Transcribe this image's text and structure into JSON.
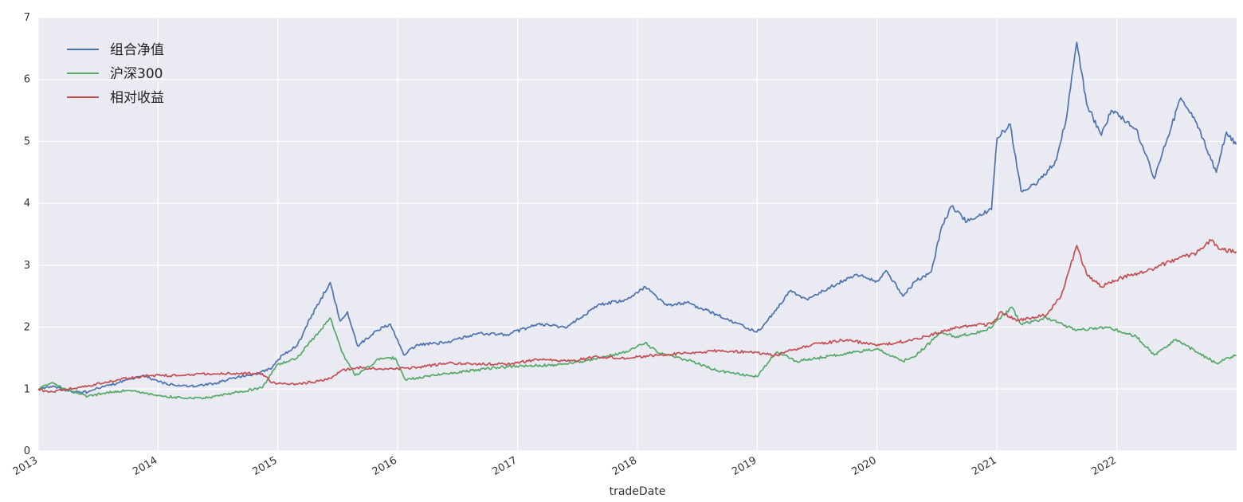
{
  "chart_data": {
    "type": "line",
    "xlabel": "tradeDate",
    "ylabel": "",
    "xlim": [
      "2013-01-01",
      "2023-01-01"
    ],
    "ylim": [
      0,
      7
    ],
    "yticks": [
      0,
      1,
      2,
      3,
      4,
      5,
      6,
      7
    ],
    "xticks": [
      "2013",
      "2014",
      "2015",
      "2016",
      "2017",
      "2018",
      "2019",
      "2020",
      "2021",
      "2022"
    ],
    "grid": true,
    "legend_position": "top-left",
    "series": [
      {
        "name": "组合净值",
        "color": "#4c72b0",
        "points": [
          [
            "2013-01-01",
            1.0
          ],
          [
            "2013-02-15",
            1.05
          ],
          [
            "2013-04-01",
            0.97
          ],
          [
            "2013-06-01",
            0.95
          ],
          [
            "2013-07-01",
            1.02
          ],
          [
            "2013-09-01",
            1.1
          ],
          [
            "2013-11-15",
            1.22
          ],
          [
            "2014-01-01",
            1.12
          ],
          [
            "2014-03-01",
            1.05
          ],
          [
            "2014-05-01",
            1.05
          ],
          [
            "2014-07-01",
            1.1
          ],
          [
            "2014-09-01",
            1.2
          ],
          [
            "2014-11-01",
            1.25
          ],
          [
            "2014-12-15",
            1.35
          ],
          [
            "2015-01-15",
            1.55
          ],
          [
            "2015-03-01",
            1.7
          ],
          [
            "2015-04-15",
            2.2
          ],
          [
            "2015-06-10",
            2.72
          ],
          [
            "2015-07-10",
            2.1
          ],
          [
            "2015-08-01",
            2.25
          ],
          [
            "2015-09-01",
            1.7
          ],
          [
            "2015-11-01",
            1.95
          ],
          [
            "2015-12-10",
            2.05
          ],
          [
            "2016-01-20",
            1.55
          ],
          [
            "2016-03-01",
            1.72
          ],
          [
            "2016-06-01",
            1.75
          ],
          [
            "2016-09-01",
            1.9
          ],
          [
            "2016-12-01",
            1.88
          ],
          [
            "2017-03-01",
            2.05
          ],
          [
            "2017-06-01",
            2.0
          ],
          [
            "2017-09-01",
            2.35
          ],
          [
            "2017-12-01",
            2.45
          ],
          [
            "2018-01-25",
            2.65
          ],
          [
            "2018-04-01",
            2.35
          ],
          [
            "2018-06-01",
            2.4
          ],
          [
            "2018-09-01",
            2.2
          ],
          [
            "2018-12-31",
            1.92
          ],
          [
            "2019-02-01",
            2.1
          ],
          [
            "2019-04-10",
            2.58
          ],
          [
            "2019-06-01",
            2.45
          ],
          [
            "2019-09-01",
            2.7
          ],
          [
            "2019-11-01",
            2.85
          ],
          [
            "2019-12-31",
            2.75
          ],
          [
            "2020-02-01",
            2.9
          ],
          [
            "2020-03-20",
            2.5
          ],
          [
            "2020-05-01",
            2.75
          ],
          [
            "2020-06-15",
            2.9
          ],
          [
            "2020-07-15",
            3.6
          ],
          [
            "2020-08-15",
            3.95
          ],
          [
            "2020-10-01",
            3.7
          ],
          [
            "2020-12-15",
            3.9
          ],
          [
            "2021-01-01",
            5.05
          ],
          [
            "2021-02-10",
            5.28
          ],
          [
            "2021-03-15",
            4.2
          ],
          [
            "2021-05-01",
            4.3
          ],
          [
            "2021-07-01",
            4.7
          ],
          [
            "2021-08-01",
            5.4
          ],
          [
            "2021-09-01",
            6.6
          ],
          [
            "2021-10-01",
            5.6
          ],
          [
            "2021-11-15",
            5.1
          ],
          [
            "2021-12-15",
            5.5
          ],
          [
            "2022-03-01",
            5.2
          ],
          [
            "2022-04-25",
            4.4
          ],
          [
            "2022-06-01",
            5.0
          ],
          [
            "2022-07-15",
            5.7
          ],
          [
            "2022-09-01",
            5.3
          ],
          [
            "2022-10-31",
            4.5
          ],
          [
            "2022-12-01",
            5.15
          ],
          [
            "2022-12-31",
            4.95
          ]
        ]
      },
      {
        "name": "沪深300",
        "color": "#55a868",
        "points": [
          [
            "2013-01-01",
            1.0
          ],
          [
            "2013-02-10",
            1.1
          ],
          [
            "2013-04-01",
            0.98
          ],
          [
            "2013-06-01",
            0.88
          ],
          [
            "2013-08-01",
            0.95
          ],
          [
            "2013-10-01",
            0.98
          ],
          [
            "2014-01-01",
            0.9
          ],
          [
            "2014-03-20",
            0.85
          ],
          [
            "2014-06-01",
            0.86
          ],
          [
            "2014-09-01",
            0.95
          ],
          [
            "2014-11-15",
            1.02
          ],
          [
            "2014-12-31",
            1.4
          ],
          [
            "2015-03-01",
            1.5
          ],
          [
            "2015-06-10",
            2.15
          ],
          [
            "2015-07-15",
            1.6
          ],
          [
            "2015-08-25",
            1.22
          ],
          [
            "2015-11-10",
            1.5
          ],
          [
            "2015-12-25",
            1.5
          ],
          [
            "2016-01-25",
            1.15
          ],
          [
            "2016-06-01",
            1.25
          ],
          [
            "2016-11-01",
            1.35
          ],
          [
            "2017-03-01",
            1.38
          ],
          [
            "2017-06-01",
            1.4
          ],
          [
            "2017-09-01",
            1.5
          ],
          [
            "2017-12-01",
            1.6
          ],
          [
            "2018-01-25",
            1.75
          ],
          [
            "2018-03-01",
            1.6
          ],
          [
            "2018-06-15",
            1.45
          ],
          [
            "2018-09-01",
            1.3
          ],
          [
            "2018-12-31",
            1.2
          ],
          [
            "2019-03-01",
            1.6
          ],
          [
            "2019-05-01",
            1.45
          ],
          [
            "2019-09-01",
            1.55
          ],
          [
            "2019-12-31",
            1.65
          ],
          [
            "2020-03-20",
            1.45
          ],
          [
            "2020-05-01",
            1.55
          ],
          [
            "2020-07-10",
            1.9
          ],
          [
            "2020-09-01",
            1.85
          ],
          [
            "2020-12-01",
            1.95
          ],
          [
            "2021-02-15",
            2.32
          ],
          [
            "2021-03-15",
            2.05
          ],
          [
            "2021-06-01",
            2.15
          ],
          [
            "2021-09-01",
            1.95
          ],
          [
            "2021-12-01",
            2.0
          ],
          [
            "2022-03-01",
            1.85
          ],
          [
            "2022-04-25",
            1.55
          ],
          [
            "2022-07-01",
            1.8
          ],
          [
            "2022-09-01",
            1.6
          ],
          [
            "2022-10-31",
            1.42
          ],
          [
            "2022-12-31",
            1.55
          ]
        ]
      },
      {
        "name": "相对收益",
        "color": "#c44e52",
        "points": [
          [
            "2013-01-01",
            1.0
          ],
          [
            "2013-02-01",
            0.95
          ],
          [
            "2013-04-01",
            1.0
          ],
          [
            "2013-06-01",
            1.05
          ],
          [
            "2013-09-01",
            1.15
          ],
          [
            "2013-12-01",
            1.22
          ],
          [
            "2014-03-01",
            1.22
          ],
          [
            "2014-06-01",
            1.25
          ],
          [
            "2014-09-01",
            1.25
          ],
          [
            "2014-11-15",
            1.25
          ],
          [
            "2014-12-15",
            1.1
          ],
          [
            "2015-03-01",
            1.08
          ],
          [
            "2015-06-01",
            1.15
          ],
          [
            "2015-07-15",
            1.3
          ],
          [
            "2015-09-01",
            1.35
          ],
          [
            "2015-12-01",
            1.32
          ],
          [
            "2016-03-01",
            1.35
          ],
          [
            "2016-06-01",
            1.42
          ],
          [
            "2016-12-01",
            1.4
          ],
          [
            "2017-03-01",
            1.48
          ],
          [
            "2017-06-01",
            1.45
          ],
          [
            "2017-09-01",
            1.52
          ],
          [
            "2017-12-01",
            1.5
          ],
          [
            "2018-03-01",
            1.55
          ],
          [
            "2018-06-01",
            1.58
          ],
          [
            "2018-09-01",
            1.62
          ],
          [
            "2018-12-01",
            1.6
          ],
          [
            "2019-03-01",
            1.55
          ],
          [
            "2019-06-01",
            1.7
          ],
          [
            "2019-10-01",
            1.8
          ],
          [
            "2019-12-31",
            1.7
          ],
          [
            "2020-03-01",
            1.75
          ],
          [
            "2020-06-01",
            1.85
          ],
          [
            "2020-09-01",
            2.0
          ],
          [
            "2020-12-15",
            2.05
          ],
          [
            "2021-01-15",
            2.25
          ],
          [
            "2021-03-01",
            2.1
          ],
          [
            "2021-06-01",
            2.2
          ],
          [
            "2021-07-15",
            2.5
          ],
          [
            "2021-09-01",
            3.32
          ],
          [
            "2021-10-01",
            2.85
          ],
          [
            "2021-11-15",
            2.65
          ],
          [
            "2022-01-15",
            2.8
          ],
          [
            "2022-04-01",
            2.9
          ],
          [
            "2022-07-01",
            3.1
          ],
          [
            "2022-09-01",
            3.2
          ],
          [
            "2022-10-15",
            3.4
          ],
          [
            "2022-11-15",
            3.25
          ],
          [
            "2022-12-31",
            3.22
          ]
        ]
      }
    ]
  }
}
